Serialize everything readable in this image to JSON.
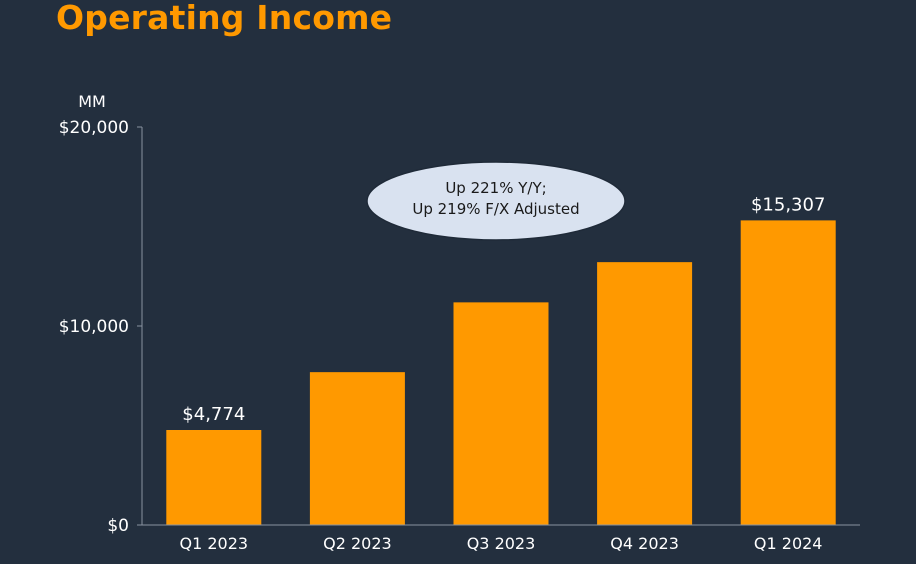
{
  "title": "Operating Income",
  "chart_data": {
    "type": "bar",
    "title": "Operating Income",
    "ylabel": "MM",
    "categories": [
      "Q1 2023",
      "Q2 2023",
      "Q3 2023",
      "Q4 2023",
      "Q1 2024"
    ],
    "values": [
      4774,
      7681,
      11188,
      13209,
      15307
    ],
    "data_labels": [
      "$4,774",
      "",
      "",
      "",
      "$15,307"
    ],
    "ylim": [
      0,
      20000
    ],
    "yticks": [
      0,
      10000,
      20000
    ],
    "ytick_labels": [
      "$0",
      "$10,000",
      "$20,000"
    ],
    "annotation": [
      "Up 221% Y/Y;",
      "Up 219% F/X Adjusted"
    ],
    "grid": false,
    "legend": "none",
    "colors": {
      "bar": "#ff9900",
      "background": "#232f3e",
      "axis": "#8a93a0",
      "text": "#ffffff",
      "annotation_fill": "#d9e2f0",
      "annotation_text": "#1a1a1a"
    }
  }
}
